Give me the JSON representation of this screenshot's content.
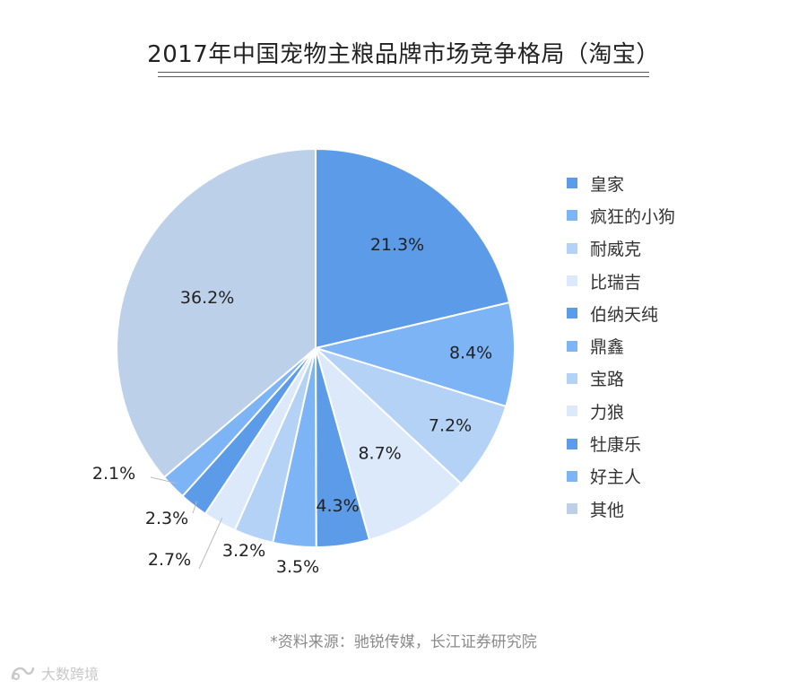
{
  "chart_data": {
    "type": "pie",
    "title": "2017年中国宠物主粮品牌市场竞争格局（淘宝）",
    "categories": [
      "皇家",
      "疯狂的小狗",
      "耐威克",
      "比瑞吉",
      "伯纳天纯",
      "鼎鑫",
      "宝路",
      "力狼",
      "牡康乐",
      "好主人",
      "其他"
    ],
    "values": [
      21.3,
      8.4,
      7.2,
      8.7,
      4.3,
      3.5,
      3.2,
      2.7,
      2.3,
      2.1,
      36.2
    ],
    "labels": [
      "21.3%",
      "8.4%",
      "7.2%",
      "8.7%",
      "4.3%",
      "3.5%",
      "3.2%",
      "2.7%",
      "2.3%",
      "2.1%",
      "36.2%"
    ],
    "colors": [
      "#5b9be8",
      "#7db4f5",
      "#b3d2f6",
      "#dbe9fb",
      "#5b9be8",
      "#7db4f5",
      "#b3d2f6",
      "#dbe9fb",
      "#5b9be8",
      "#7db4f5",
      "#bcd0e9"
    ],
    "legend_position": "right",
    "start_angle": "12 o'clock",
    "direction": "clockwise"
  },
  "source": "*资料来源：驰锐传媒，长江证券研究院",
  "watermark": {
    "text": "大数跨境",
    "icon": "brand-logo-icon"
  }
}
